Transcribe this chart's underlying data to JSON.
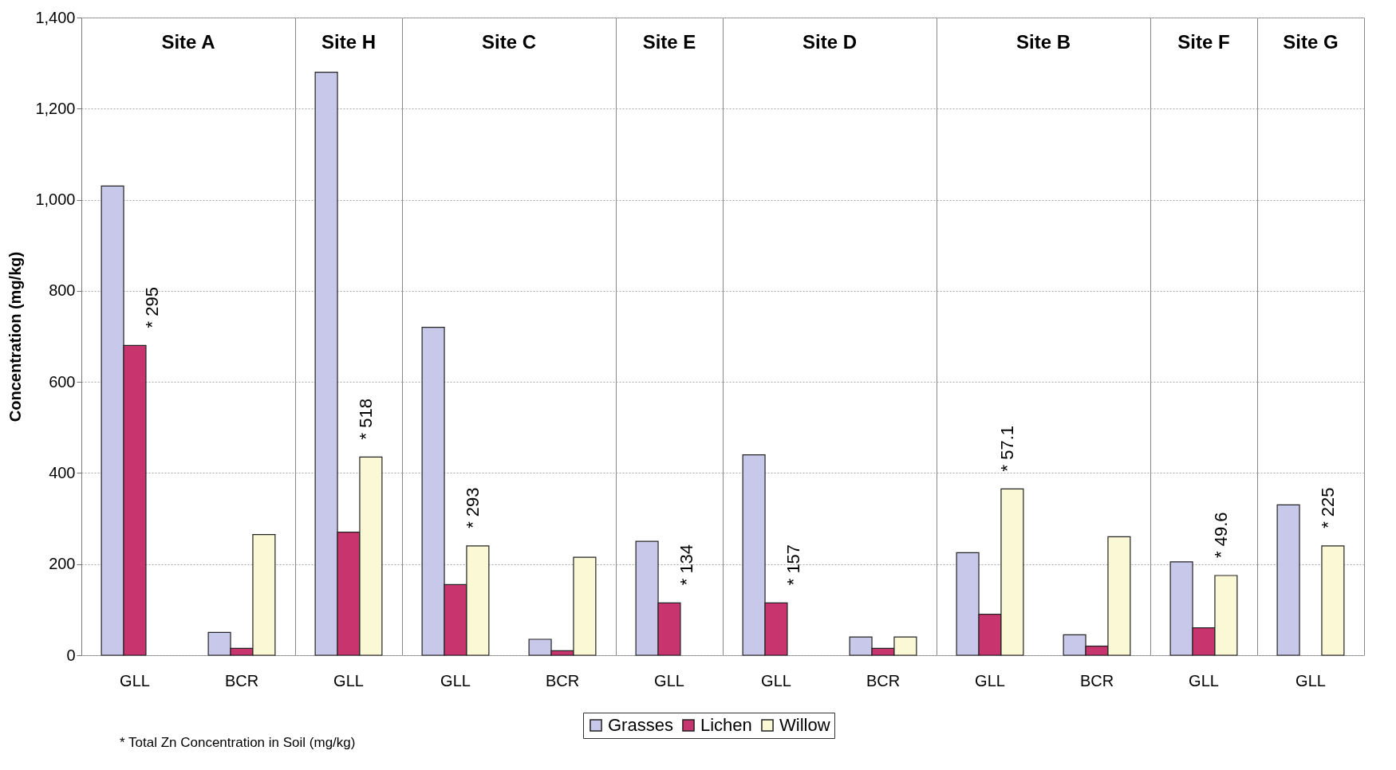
{
  "chart_data": [
    {
      "type": "bar",
      "title": "Site A",
      "ylabel": "Concentration (mg/kg)",
      "categories": [
        "GLL",
        "BCR"
      ],
      "series": [
        {
          "color": "#c8c8ea",
          "values": [
            1030,
            50
          ]
        },
        {
          "color": "#c8356e",
          "values": [
            680,
            15
          ]
        },
        {
          "color": "#fbf8d6",
          "values": [
            null,
            265
          ]
        }
      ],
      "ylim": [
        0,
        1400
      ],
      "yticks": [
        0,
        200,
        400,
        600,
        800,
        {
          "value": 1000,
          "label": "1,000"
        },
        {
          "value": 1200,
          "label": "1,200"
        },
        {
          "value": 1400,
          "label": "1,400"
        }
      ],
      "grid": "y",
      "annotations": [
        "* 295",
        "* Total Zn Concentration in Soil (mg/kg)"
      ]
    },
    {
      "type": "bar",
      "title": "Site H",
      "categories": [
        "GLL"
      ],
      "series": [
        {
          "color": "#c8c8ea",
          "values": [
            1280
          ]
        },
        {
          "color": "#c8356e",
          "values": [
            270
          ]
        },
        {
          "color": "#fbf8d6",
          "values": [
            435
          ]
        }
      ],
      "ylim": [
        0,
        1400
      ],
      "yticks": [
        0,
        200,
        400,
        600,
        800,
        1000,
        1200,
        1400
      ],
      "grid": "y",
      "tick_labels": "x",
      "annotations": [
        "* 518"
      ]
    },
    {
      "type": "bar",
      "title": "Site C",
      "categories": [
        "GLL",
        "BCR"
      ],
      "series": [
        {
          "color": "#c8c8ea",
          "values": [
            720,
            35
          ]
        },
        {
          "color": "#c8356e",
          "values": [
            155,
            10
          ]
        },
        {
          "color": "#fbf8d6",
          "values": [
            240,
            215
          ]
        }
      ],
      "ylim": [
        0,
        1400
      ],
      "yticks": [
        0,
        200,
        400,
        600,
        800,
        1000,
        1200,
        1400
      ],
      "grid": "y",
      "tick_labels": "x",
      "annotations": [
        "* 293"
      ]
    },
    {
      "type": "bar",
      "title": "Site E",
      "categories": [
        "GLL"
      ],
      "series": [
        {
          "color": "#c8c8ea",
          "values": [
            250
          ]
        },
        {
          "color": "#c8356e",
          "values": [
            115
          ]
        },
        {
          "color": "#fbf8d6",
          "values": [
            null
          ]
        }
      ],
      "ylim": [
        0,
        1400
      ],
      "yticks": [
        0,
        200,
        400,
        600,
        800,
        1000,
        1200,
        1400
      ],
      "grid": "y",
      "tick_labels": "x",
      "annotations": [
        "* 134"
      ]
    },
    {
      "type": "bar",
      "title": "Site D",
      "categories": [
        "GLL",
        "BCR"
      ],
      "series": [
        {
          "name": "Grasses",
          "color": "#c8c8ea",
          "values": [
            440,
            40
          ]
        },
        {
          "name": "Lichen",
          "color": "#c8356e",
          "values": [
            115,
            15
          ]
        },
        {
          "name": "Willow",
          "color": "#fbf8d6",
          "values": [
            null,
            40
          ]
        }
      ],
      "ylim": [
        0,
        1400
      ],
      "yticks": [
        0,
        200,
        400,
        600,
        800,
        1000,
        1200,
        1400
      ],
      "grid": "y",
      "tick_labels": "x",
      "legend": "bottom",
      "annotations": [
        "* 157"
      ]
    },
    {
      "type": "bar",
      "title": "Site B",
      "categories": [
        "GLL",
        "BCR"
      ],
      "series": [
        {
          "color": "#c8c8ea",
          "values": [
            225,
            45
          ]
        },
        {
          "color": "#c8356e",
          "values": [
            90,
            20
          ]
        },
        {
          "color": "#fbf8d6",
          "values": [
            365,
            260
          ]
        }
      ],
      "ylim": [
        0,
        1400
      ],
      "yticks": [
        0,
        200,
        400,
        600,
        800,
        1000,
        1200,
        1400
      ],
      "grid": "y",
      "tick_labels": "x",
      "annotations": [
        "* 57.1"
      ]
    },
    {
      "type": "bar",
      "title": "Site F",
      "categories": [
        "GLL"
      ],
      "series": [
        {
          "color": "#c8c8ea",
          "values": [
            205
          ]
        },
        {
          "color": "#c8356e",
          "values": [
            60
          ]
        },
        {
          "color": "#fbf8d6",
          "values": [
            175
          ]
        }
      ],
      "ylim": [
        0,
        1400
      ],
      "yticks": [
        0,
        200,
        400,
        600,
        800,
        1000,
        1200,
        1400
      ],
      "grid": "y",
      "tick_labels": "x",
      "annotations": [
        "* 49.6"
      ]
    },
    {
      "type": "bar",
      "title": "Site G",
      "categories": [
        "GLL"
      ],
      "series": [
        {
          "color": "#c8c8ea",
          "values": [
            330
          ]
        },
        {
          "color": "#c8356e",
          "values": [
            null
          ]
        },
        {
          "color": "#fbf8d6",
          "values": [
            240
          ]
        }
      ],
      "ylim": [
        0,
        1400
      ],
      "yticks": [
        0,
        200,
        400,
        600,
        800,
        1000,
        1200,
        1400
      ],
      "grid": "y",
      "tick_labels": "x",
      "annotations": [
        "* 225"
      ]
    }
  ]
}
